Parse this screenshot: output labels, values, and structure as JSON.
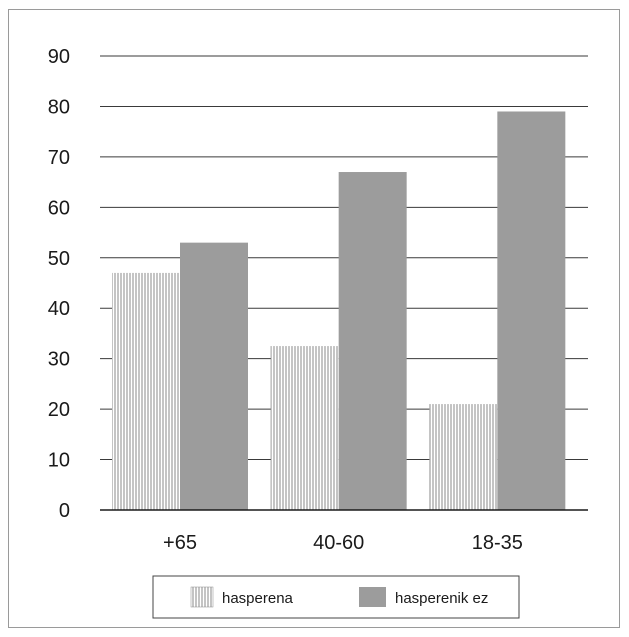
{
  "chart_data": {
    "type": "bar",
    "title": "",
    "xlabel": "",
    "ylabel": "",
    "categories": [
      "+65",
      "40-60",
      "18-35"
    ],
    "series": [
      {
        "name": "hasperena",
        "values": [
          47,
          32.5,
          21
        ],
        "pattern": "vertical-stripes",
        "color": "#ffffff",
        "stroke": "#8a8a8a"
      },
      {
        "name": "hasperenik ez",
        "values": [
          53,
          67,
          79
        ],
        "pattern": "solid",
        "color": "#9c9c9c"
      }
    ],
    "ylim": [
      0,
      90
    ],
    "yticks": [
      0,
      10,
      20,
      30,
      40,
      50,
      60,
      70,
      80,
      90
    ],
    "grid": true,
    "legend_position": "bottom"
  }
}
